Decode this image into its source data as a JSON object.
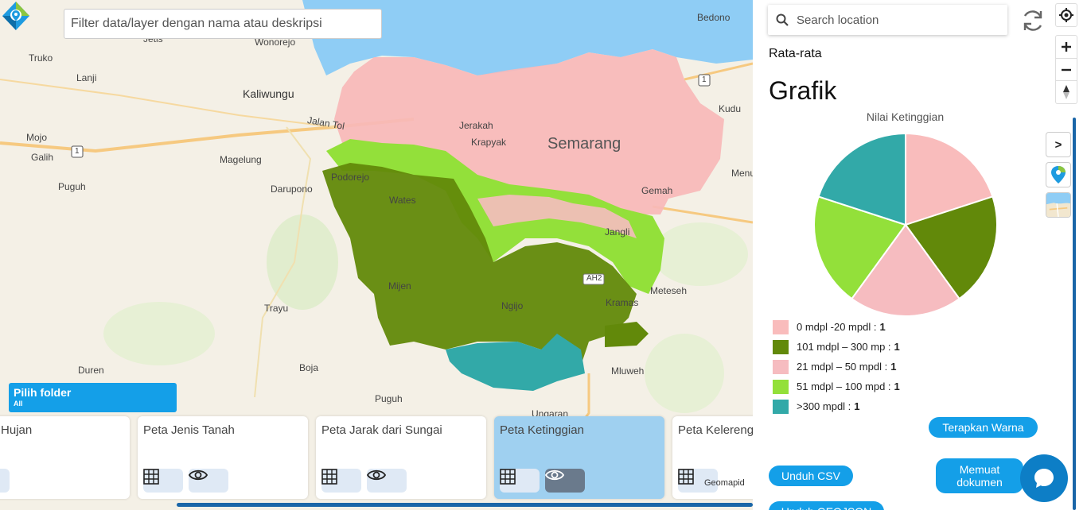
{
  "map": {
    "filter_placeholder": "Filter data/layer dengan nama atau deskripsi",
    "labels": {
      "wonorejo": "Wonorejo",
      "jetis": "Jetis",
      "truko": "Truko",
      "lanji": "Lanji",
      "kaliwungu": "Kaliwungu",
      "jalan_tol": "Jalan Tol",
      "mojo": "Mojo",
      "galih": "Galih",
      "magelung": "Magelung",
      "puguh1": "Puguh",
      "darupono": "Darupono",
      "podorejo": "Podorejo",
      "wates": "Wates",
      "mijen": "Mijen",
      "trayu": "Trayu",
      "ngijo": "Ngijo",
      "duren": "Duren",
      "boja": "Boja",
      "puguh2": "Puguh",
      "jerakah": "Jerakah",
      "krapyak": "Krapyak",
      "semarang": "Semarang",
      "gemah": "Gemah",
      "jangli": "Jangli",
      "kramas": "Kramas",
      "meteseh": "Meteseh",
      "mluweh": "Mluweh",
      "ungaran": "Ungaran",
      "bedono": "Bedono",
      "kudu": "Kudu",
      "menu": "Menu",
      "ah2": "AH2",
      "road1": "1",
      "road1b": "1"
    },
    "folder_button": {
      "label": "Pilih folder",
      "sub": "All"
    },
    "cards": [
      {
        "title": "Curah Hujan"
      },
      {
        "title": "Peta Jenis Tanah"
      },
      {
        "title": "Peta Jarak dari Sungai"
      },
      {
        "title": "Peta Ketinggian"
      },
      {
        "title": "Peta Kelerengan"
      }
    ],
    "geomapid_text": "Geomapid"
  },
  "panel": {
    "search_placeholder": "Search location",
    "rata_rata": "Rata-rata",
    "grafik": "Grafik",
    "toggle_label": ">",
    "chart_title": "Nilai Ketinggian",
    "legend": [
      {
        "label": "0 mdpl -20 mpdl :",
        "count": "1",
        "color": "#f9bcbc"
      },
      {
        "label": "101 mdpl – 300 mp :",
        "count": "1",
        "color": "#62890a"
      },
      {
        "label": "21 mdpl – 50 mpdl :",
        "count": "1",
        "color": "#f6bcc0"
      },
      {
        "label": "51 mdpl – 100 mpd :",
        "count": "1",
        "color": "#93e03a"
      },
      {
        "label": ">300 mpdl :",
        "count": "1",
        "color": "#32a9a8"
      }
    ],
    "apply_color_btn": "Terapkan Warna",
    "download_csv_btn": "Unduh CSV",
    "load_doc_btn": "Memuat dokumen",
    "download_geojson_btn": "Unduh GEOJSON"
  },
  "chart_data": {
    "type": "pie",
    "title": "Nilai Ketinggian",
    "categories": [
      "0 mdpl -20 mpdl",
      "101 mdpl – 300 mp",
      "21 mdpl – 50 mpdl",
      "51 mdpl – 100 mpd",
      ">300 mpdl"
    ],
    "values": [
      1,
      1,
      1,
      1,
      1
    ],
    "colors": [
      "#f9bcbc",
      "#62890a",
      "#f6bcc0",
      "#93e03a",
      "#32a9a8"
    ]
  }
}
